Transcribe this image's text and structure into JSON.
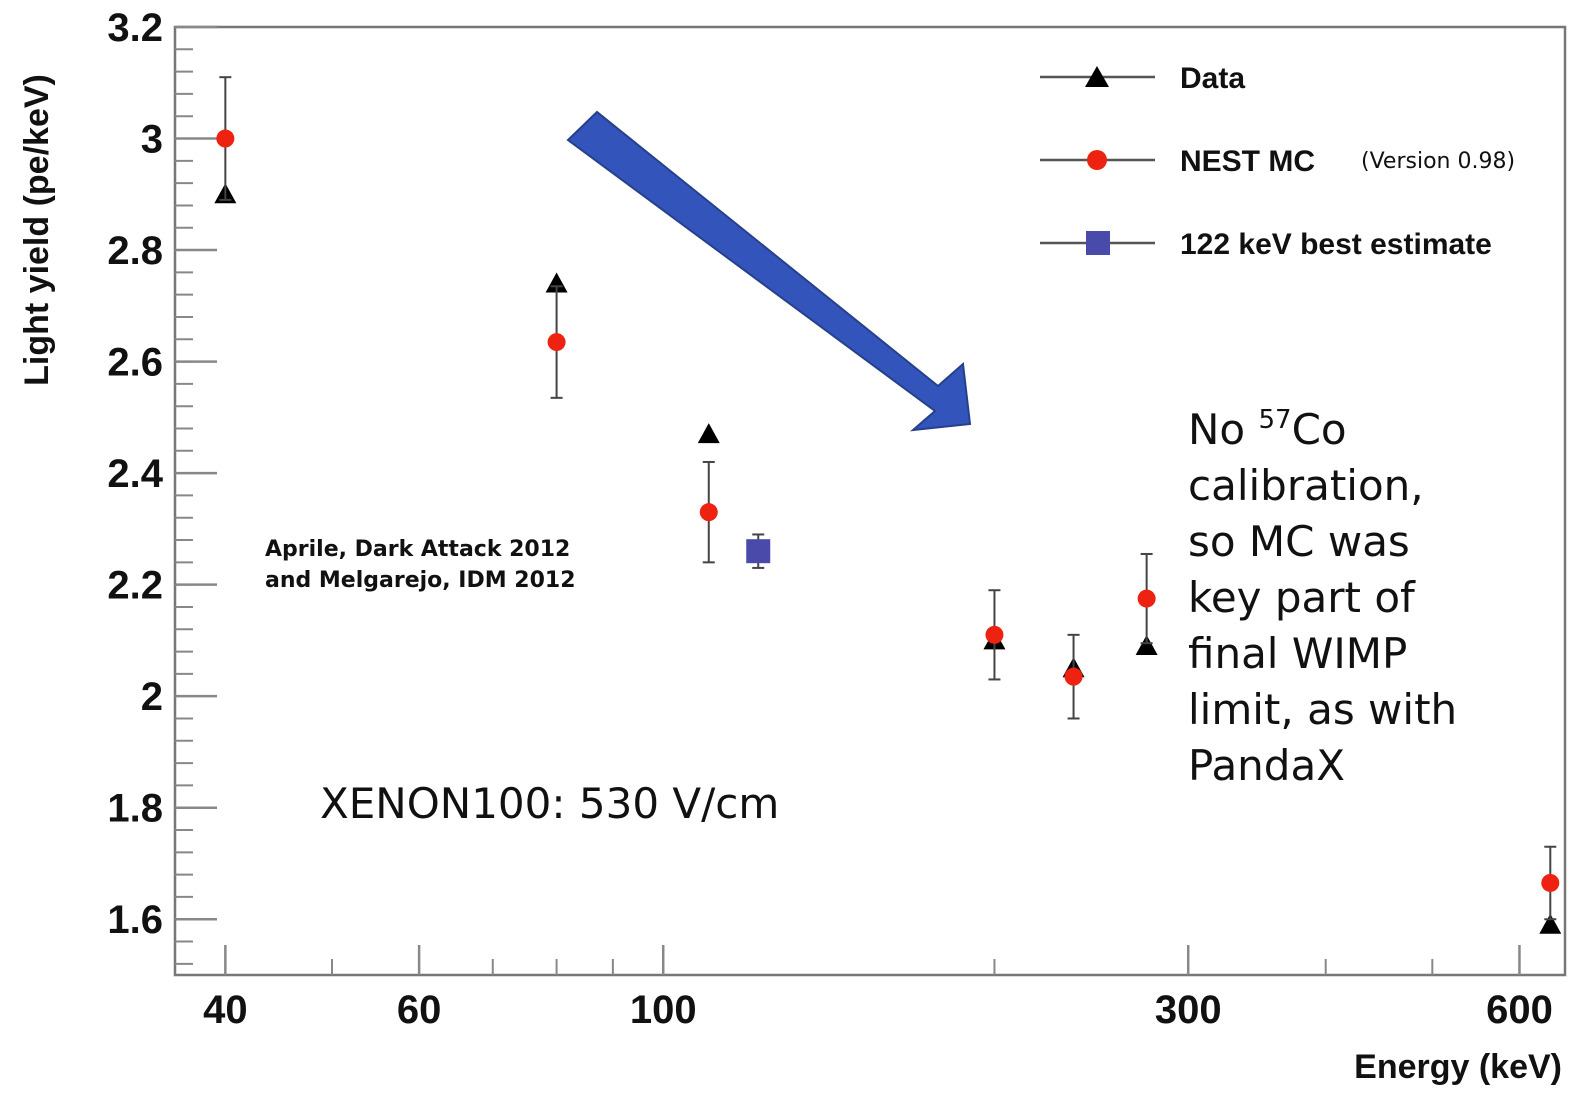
{
  "chart_data": {
    "type": "scatter",
    "xlabel": "Energy (keV)",
    "ylabel": "Light yield (pe/keV)",
    "x_scale": "log",
    "xlim": [
      36,
      660
    ],
    "ylim": [
      1.5,
      3.2
    ],
    "x_ticks": [
      40,
      60,
      100,
      300,
      600
    ],
    "y_ticks": [
      1.6,
      1.8,
      2,
      2.2,
      2.4,
      2.6,
      2.8,
      3,
      3.2
    ],
    "y_tick_labels": [
      "1.6",
      "1.8",
      "2",
      "2.2",
      "2.4",
      "2.6",
      "2.8",
      "3",
      "3.2"
    ],
    "series": [
      {
        "name": "Data",
        "marker": "triangle",
        "color": "#000000",
        "points": [
          {
            "x": 40,
            "y": 2.9
          },
          {
            "x": 80,
            "y": 2.74
          },
          {
            "x": 110,
            "y": 2.47
          },
          {
            "x": 200,
            "y": 2.1
          },
          {
            "x": 236,
            "y": 2.05
          },
          {
            "x": 275,
            "y": 2.09
          },
          {
            "x": 640,
            "y": 1.59
          }
        ]
      },
      {
        "name": "NEST MC",
        "marker": "circle",
        "color": "#ee2211",
        "points": [
          {
            "x": 40,
            "y": 3.0,
            "err": 0.11
          },
          {
            "x": 80,
            "y": 2.635,
            "err": 0.1
          },
          {
            "x": 110,
            "y": 2.33,
            "err": 0.09
          },
          {
            "x": 200,
            "y": 2.11,
            "err": 0.08
          },
          {
            "x": 236,
            "y": 2.035,
            "err": 0.075
          },
          {
            "x": 275,
            "y": 2.175,
            "err": 0.08
          },
          {
            "x": 640,
            "y": 1.665,
            "err": 0.065
          }
        ]
      },
      {
        "name": "122 keV best estimate",
        "marker": "square",
        "color": "#4a4aaa",
        "points": [
          {
            "x": 122,
            "y": 2.26,
            "err": 0.03
          }
        ]
      }
    ],
    "legend": {
      "position": "top-right",
      "version_note": "(Version 0.98)"
    },
    "annotations": {
      "citation_line1": "Aprile, Dark Attack 2012",
      "citation_line2": "and Melgarejo, IDM 2012",
      "condition": "XENON100: 530 V/cm",
      "note_prefix": "No ",
      "note_superscript": "57",
      "note_element": "Co",
      "note_lines": [
        "calibration,",
        "so MC was",
        "key part of",
        "final WIMP",
        "limit, as with",
        "PandaX"
      ]
    },
    "arrow_color": "#3355bb"
  }
}
